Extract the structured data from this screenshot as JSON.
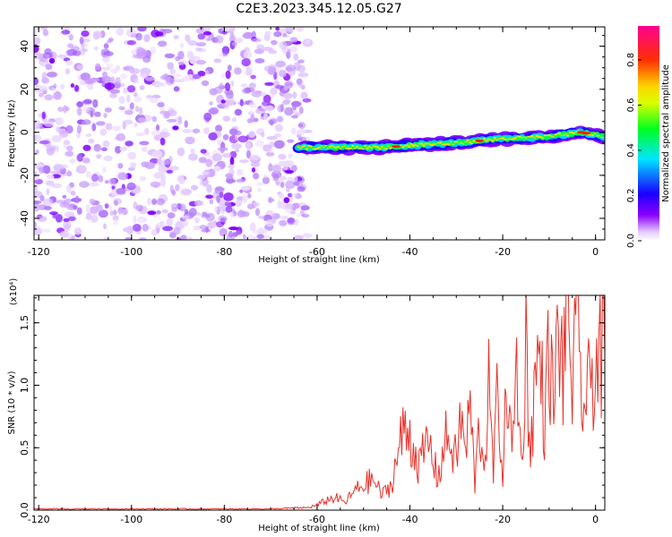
{
  "title": "C2E3.2023.345.12.05.G27",
  "chart_data": [
    {
      "type": "heatmap",
      "xlabel": "Height of straight line (km)",
      "ylabel": "Frequency (Hz)",
      "xlim": [
        -121,
        2
      ],
      "ylim": [
        -50,
        49
      ],
      "xticks": [
        -120,
        -100,
        -80,
        -60,
        -40,
        -20,
        0
      ],
      "yticks": [
        -40,
        -20,
        0,
        20,
        40
      ],
      "colorbar": {
        "label": "Normalized spectral amplitude",
        "range": [
          0,
          0.95
        ],
        "ticks": [
          "0.0",
          "0.2",
          "0.4",
          "0.6",
          "0.8"
        ],
        "colormap": "hsv-rainbow (white/violet low, blue, cyan, green, yellow, red, magenta high)"
      },
      "noise_region": {
        "x": [
          -121,
          -62
        ],
        "freq": [
          -50,
          49
        ],
        "amplitude": "low (0.0-0.1)"
      },
      "signal_ridge": [
        {
          "x": -64,
          "freq": -7
        },
        {
          "x": -55,
          "freq": -7
        },
        {
          "x": -45,
          "freq": -7
        },
        {
          "x": -40,
          "freq": -6
        },
        {
          "x": -30,
          "freq": -5
        },
        {
          "x": -20,
          "freq": -3
        },
        {
          "x": -10,
          "freq": -2
        },
        {
          "x": -3,
          "freq": 0
        },
        {
          "x": 2,
          "freq": -2
        }
      ]
    },
    {
      "type": "line",
      "xlabel": "Height of straight line (km)",
      "ylabel": "SNR (10 * v/v)",
      "y_multiplier": "(x10⁴)",
      "xlim": [
        -121,
        2
      ],
      "ylim": [
        0,
        1.72
      ],
      "xticks": [
        -120,
        -100,
        -80,
        -60,
        -40,
        -20,
        0
      ],
      "yticks": [
        "0.0",
        "0.5",
        "1.0",
        "1.5"
      ],
      "color": "#e8322a",
      "series": [
        {
          "x": [
            -121,
            -110,
            -100,
            -90,
            -80,
            -70,
            -62,
            -60,
            -58,
            -56,
            -54,
            -52,
            -50,
            -48,
            -46,
            -44,
            -42,
            -41,
            -40,
            -38,
            -36,
            -34,
            -32,
            -30,
            -29,
            -28,
            -27,
            -26,
            -25,
            -24,
            -23,
            -22,
            -21,
            -20,
            -19,
            -18,
            -17,
            -16,
            -15,
            -14,
            -13,
            -12,
            -11,
            -10,
            -9,
            -8,
            -7,
            -6,
            -5,
            -4,
            -3,
            -2,
            -1,
            0,
            1,
            2
          ],
          "y": [
            0.01,
            0.01,
            0.01,
            0.01,
            0.01,
            0.01,
            0.02,
            0.04,
            0.08,
            0.1,
            0.06,
            0.15,
            0.2,
            0.25,
            0.12,
            0.2,
            0.55,
            0.65,
            0.6,
            0.35,
            0.55,
            0.25,
            0.6,
            0.4,
            0.75,
            0.45,
            0.85,
            0.2,
            0.7,
            0.35,
            0.95,
            0.3,
            1.0,
            0.25,
            1.1,
            0.4,
            1.2,
            0.35,
            1.3,
            0.45,
            1.05,
            1.25,
            0.7,
            1.3,
            0.8,
            1.45,
            1.1,
            1.72,
            1.0,
            1.4,
            0.95,
            0.8,
            1.1,
            1.15,
            1.2,
            1.25
          ]
        }
      ]
    }
  ]
}
